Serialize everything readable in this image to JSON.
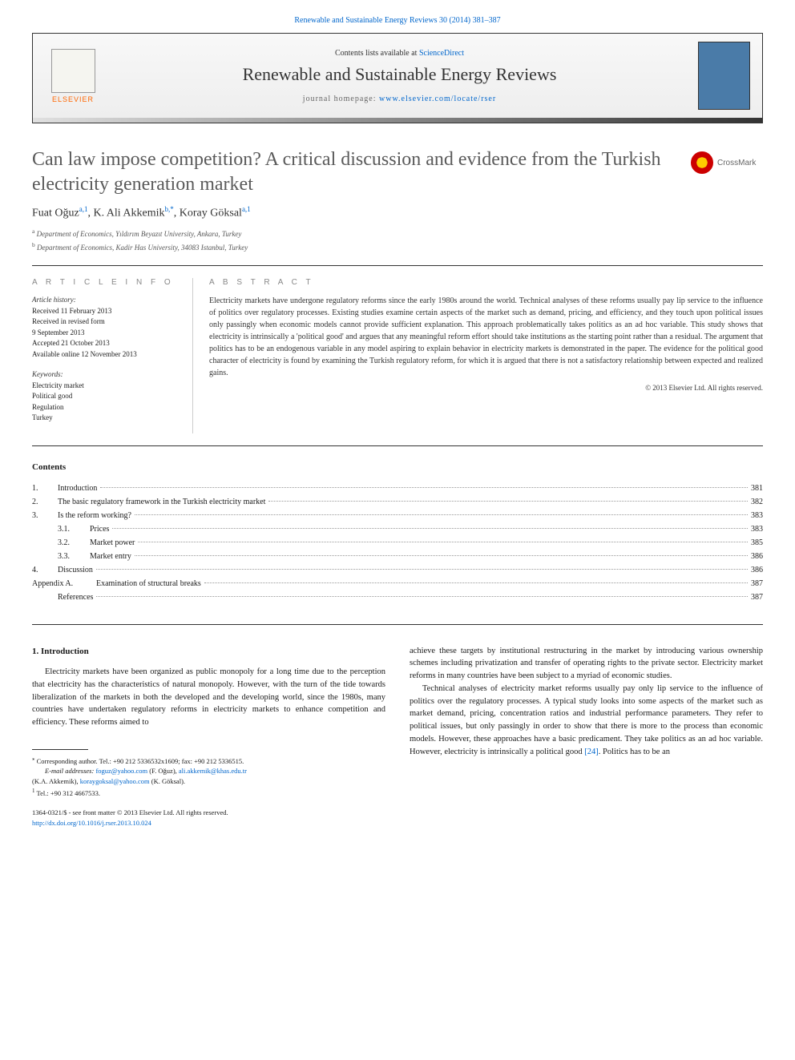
{
  "top_ref": "Renewable and Sustainable Energy Reviews 30 (2014) 381–387",
  "header": {
    "contents_prefix": "Contents lists available at ",
    "contents_link": "ScienceDirect",
    "journal_name": "Renewable and Sustainable Energy Reviews",
    "homepage_prefix": "journal homepage: ",
    "homepage_link": "www.elsevier.com/locate/rser",
    "publisher": "ELSEVIER"
  },
  "crossmark_label": "CrossMark",
  "title": "Can law impose competition? A critical discussion and evidence from the Turkish electricity generation market",
  "authors": {
    "a1": {
      "name": "Fuat Oğuz",
      "sup": "a,1"
    },
    "a2": {
      "name": "K. Ali Akkemik",
      "sup": "b,",
      "corr": "*"
    },
    "a3": {
      "name": "Koray Göksal",
      "sup": "a,1"
    }
  },
  "affiliations": {
    "a": "Department of Economics, Yıldırım Beyazıt University, Ankara, Turkey",
    "b": "Department of Economics, Kadir Has University, 34083 Istanbul, Turkey"
  },
  "info": {
    "heading": "A R T I C L E   I N F O",
    "history_label": "Article history:",
    "received": "Received 11 February 2013",
    "revised1": "Received in revised form",
    "revised2": "9 September 2013",
    "accepted": "Accepted 21 October 2013",
    "online": "Available online 12 November 2013",
    "keywords_label": "Keywords:",
    "keywords": [
      "Electricity market",
      "Political good",
      "Regulation",
      "Turkey"
    ]
  },
  "abstract": {
    "heading": "A B S T R A C T",
    "text": "Electricity markets have undergone regulatory reforms since the early 1980s around the world. Technical analyses of these reforms usually pay lip service to the influence of politics over regulatory processes. Existing studies examine certain aspects of the market such as demand, pricing, and efficiency, and they touch upon political issues only passingly when economic models cannot provide sufficient explanation. This approach problematically takes politics as an ad hoc variable. This study shows that electricity is intrinsically a 'political good' and argues that any meaningful reform effort should take institutions as the starting point rather than a residual. The argument that politics has to be an endogenous variable in any model aspiring to explain behavior in electricity markets is demonstrated in the paper. The evidence for the political good character of electricity is found by examining the Turkish regulatory reform, for which it is argued that there is not a satisfactory relationship between expected and realized gains.",
    "copyright": "© 2013 Elsevier Ltd. All rights reserved."
  },
  "contents": {
    "heading": "Contents",
    "items": [
      {
        "num": "1.",
        "label": "Introduction",
        "page": "381",
        "indent": 0
      },
      {
        "num": "2.",
        "label": "The basic regulatory framework in the Turkish electricity market",
        "page": "382",
        "indent": 0
      },
      {
        "num": "3.",
        "label": "Is the reform working?",
        "page": "383",
        "indent": 0
      },
      {
        "num": "3.1.",
        "label": "Prices",
        "page": "383",
        "indent": 1
      },
      {
        "num": "3.2.",
        "label": "Market power",
        "page": "385",
        "indent": 1
      },
      {
        "num": "3.3.",
        "label": "Market entry",
        "page": "386",
        "indent": 1
      },
      {
        "num": "4.",
        "label": "Discussion",
        "page": "386",
        "indent": 0
      },
      {
        "num": "Appendix A.",
        "label": "Examination of structural breaks",
        "page": "387",
        "indent": 0,
        "appendix": true
      },
      {
        "num": "",
        "label": "References",
        "page": "387",
        "indent": 0
      }
    ]
  },
  "body": {
    "section1_heading": "1. Introduction",
    "col1_p1": "Electricity markets have been organized as public monopoly for a long time due to the perception that electricity has the characteristics of natural monopoly. However, with the turn of the tide towards liberalization of the markets in both the developed and the developing world, since the 1980s, many countries have undertaken regulatory reforms in electricity markets to enhance competition and efficiency. These reforms aimed to",
    "col2_p1": "achieve these targets by institutional restructuring in the market by introducing various ownership schemes including privatization and transfer of operating rights to the private sector. Electricity market reforms in many countries have been subject to a myriad of economic studies.",
    "col2_p2_part1": "Technical analyses of electricity market reforms usually pay only lip service to the influence of politics over the regulatory processes. A typical study looks into some aspects of the market such as market demand, pricing, concentration ratios and industrial performance parameters. They refer to political issues, but only passingly in order to show that there is more to the process than economic models. However, these approaches have a basic predicament. They take politics as an ad hoc variable. However, electricity is intrinsically a political good ",
    "col2_p2_ref": "[24]",
    "col2_p2_part2": ". Politics has to be an"
  },
  "footnotes": {
    "corr_marker": "⁎",
    "corr_text": "Corresponding author. Tel.: +90 212 5336532x1609; fax: +90 212 5336515.",
    "email_label": "E-mail addresses:",
    "email1": "foguz@yahoo.com",
    "email1_name": "(F. Oğuz)",
    "email2": "ali.akkemik@khas.edu.tr",
    "email2_name": "(K.A. Akkemik)",
    "email3": "koraygoksal@yahoo.com",
    "email3_name": "(K. Göksal)",
    "fn1_marker": "1",
    "fn1_text": "Tel.: +90 312 4667533."
  },
  "footer": {
    "issn_line": "1364-0321/$ - see front matter © 2013 Elsevier Ltd. All rights reserved.",
    "doi": "http://dx.doi.org/10.1016/j.rser.2013.10.024"
  },
  "colors": {
    "link": "#0066cc",
    "text": "#1a1a1a",
    "heading_gray": "#888888",
    "title_gray": "#5a5a5a",
    "orange": "#ff6600"
  }
}
